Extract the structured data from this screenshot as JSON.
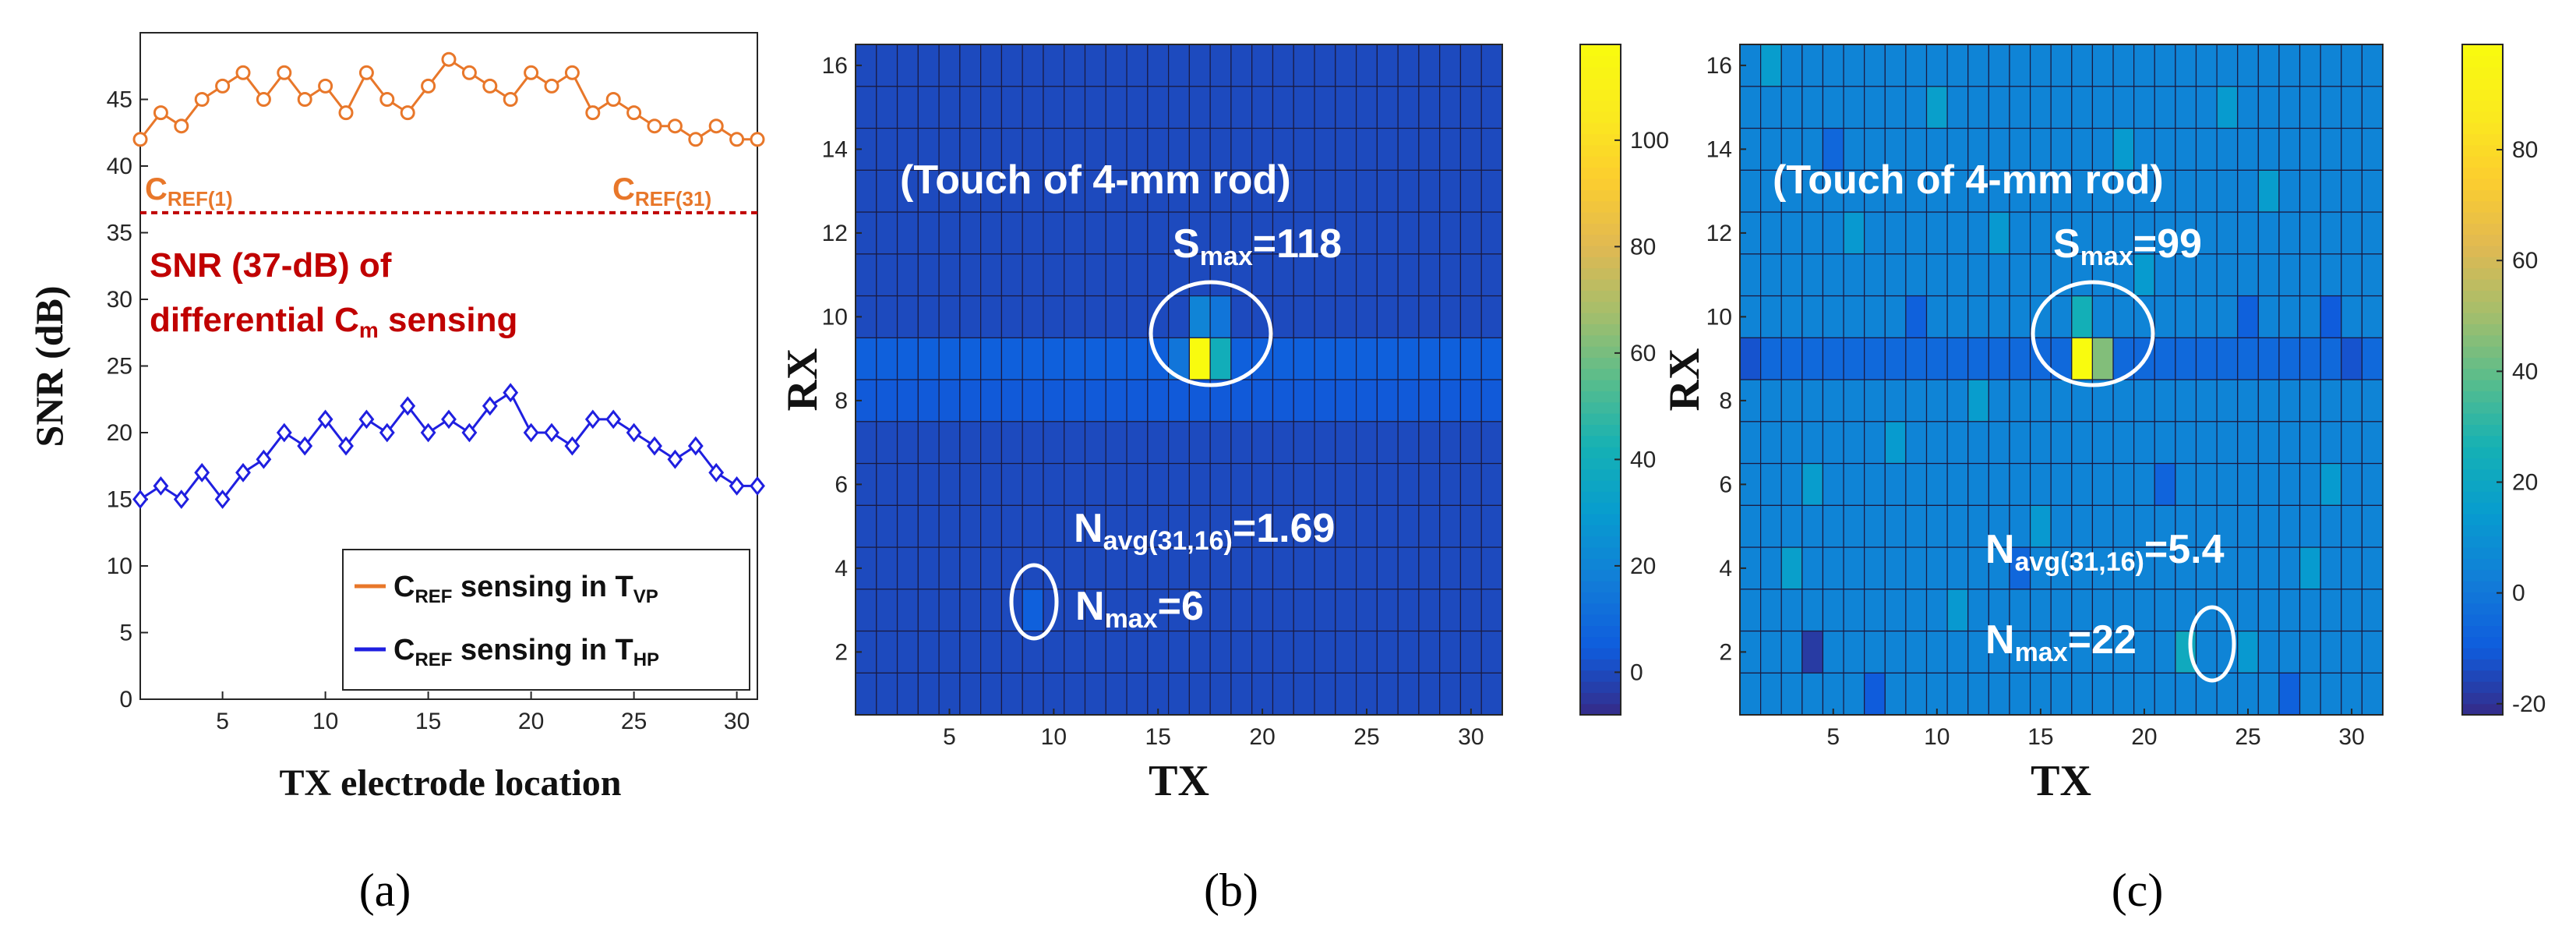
{
  "panel_labels": [
    "(a)",
    "(b)",
    "(c)"
  ],
  "colors": {
    "orange": "#e8772a",
    "blue": "#1f1fe0",
    "red_line": "#c00000",
    "annotation_white": "#ffffff"
  },
  "chart_data": [
    {
      "type": "line",
      "panel": "(a)",
      "xlabel": "TX electrode location",
      "ylabel": "SNR (dB)",
      "xlim": [
        1,
        31
      ],
      "ylim": [
        0,
        50
      ],
      "xticks": [
        5,
        10,
        15,
        20,
        25,
        30
      ],
      "yticks": [
        0,
        5,
        10,
        15,
        20,
        25,
        30,
        35,
        40,
        45
      ],
      "x": [
        1,
        2,
        3,
        4,
        5,
        6,
        7,
        8,
        9,
        10,
        11,
        12,
        13,
        14,
        15,
        16,
        17,
        18,
        19,
        20,
        21,
        22,
        23,
        24,
        25,
        26,
        27,
        28,
        29,
        30,
        31
      ],
      "series": [
        {
          "name_main": "C",
          "name_sub": "REF",
          "name_rest": " sensing in T",
          "name_sub2": "VP",
          "color": "#e8772a",
          "marker": "circle",
          "values": [
            42,
            44,
            43,
            45,
            46,
            47,
            45,
            47,
            45,
            46,
            44,
            47,
            45,
            44,
            46,
            48,
            47,
            46,
            45,
            47,
            46,
            47,
            44,
            45,
            44,
            43,
            43,
            42,
            43,
            42,
            42
          ]
        },
        {
          "name_main": "C",
          "name_sub": "REF",
          "name_rest": " sensing in T",
          "name_sub2": "HP",
          "color": "#1f1fe0",
          "marker": "diamond",
          "values": [
            15,
            16,
            15,
            17,
            15,
            17,
            18,
            20,
            19,
            21,
            19,
            21,
            20,
            22,
            20,
            21,
            20,
            22,
            23,
            20,
            20,
            19,
            21,
            21,
            20,
            19,
            18,
            19,
            17,
            16,
            16
          ]
        }
      ],
      "reference_line": {
        "value": 36.5,
        "label_line1": "SNR (37-dB) of",
        "label_line2_main": "differential C",
        "label_line2_sub": "m",
        "label_line2_rest": " sensing"
      },
      "annotations": [
        {
          "main": "C",
          "sub": "REF(1)"
        },
        {
          "main": "C",
          "sub": "REF(31)"
        }
      ],
      "legend_position": "bottom-right"
    },
    {
      "type": "heatmap",
      "panel": "(b)",
      "xlabel": "TX",
      "ylabel": "RX",
      "cols": 31,
      "rows": 16,
      "xticks": [
        5,
        10,
        15,
        20,
        25,
        30
      ],
      "yticks": [
        2,
        4,
        6,
        8,
        10,
        12,
        14,
        16
      ],
      "clim": [
        -8,
        118
      ],
      "colorbar_ticks": [
        0,
        20,
        40,
        60,
        80,
        100
      ],
      "base_value": 0,
      "row_values": {
        "8": 4,
        "9": 6
      },
      "cells": [
        {
          "tx": 17,
          "rx": 9,
          "v": 118
        },
        {
          "tx": 17,
          "rx": 10,
          "v": 20
        },
        {
          "tx": 18,
          "rx": 9,
          "v": 40
        },
        {
          "tx": 16,
          "rx": 9,
          "v": 14
        },
        {
          "tx": 18,
          "rx": 10,
          "v": 14
        },
        {
          "tx": 9,
          "rx": 3,
          "v": 6
        }
      ],
      "annotations": {
        "title": "(Touch of 4-mm rod)",
        "smax_main": "S",
        "smax_sub": "max",
        "smax_val": "=118",
        "navg_main": "N",
        "navg_sub": "avg(31,16)",
        "navg_val": "=1.69",
        "nmax_main": "N",
        "nmax_sub": "max",
        "nmax_val": "=6"
      }
    },
    {
      "type": "heatmap",
      "panel": "(c)",
      "xlabel": "TX",
      "ylabel": "RX",
      "cols": 31,
      "rows": 16,
      "xticks": [
        5,
        10,
        15,
        20,
        25,
        30
      ],
      "yticks": [
        2,
        4,
        6,
        8,
        10,
        12,
        14,
        16
      ],
      "clim": [
        -22,
        99
      ],
      "colorbar_ticks": [
        -20,
        0,
        20,
        40,
        60,
        80
      ],
      "base_value": 5,
      "row_values": {
        "9": -5
      },
      "cells": [
        {
          "tx": 17,
          "rx": 9,
          "v": 99
        },
        {
          "tx": 18,
          "rx": 9,
          "v": 45
        },
        {
          "tx": 17,
          "rx": 10,
          "v": 25
        },
        {
          "tx": 22,
          "rx": 2,
          "v": 22
        },
        {
          "tx": 3,
          "rx": 4,
          "v": 16
        },
        {
          "tx": 4,
          "rx": 6,
          "v": 15
        },
        {
          "tx": 8,
          "rx": 7,
          "v": 14
        },
        {
          "tx": 12,
          "rx": 8,
          "v": 15
        },
        {
          "tx": 20,
          "rx": 11,
          "v": 14
        },
        {
          "tx": 26,
          "rx": 13,
          "v": 15
        },
        {
          "tx": 10,
          "rx": 15,
          "v": 16
        },
        {
          "tx": 24,
          "rx": 15,
          "v": 14
        },
        {
          "tx": 15,
          "rx": 5,
          "v": 13
        },
        {
          "tx": 29,
          "rx": 6,
          "v": 14
        },
        {
          "tx": 6,
          "rx": 12,
          "v": 13
        },
        {
          "tx": 2,
          "rx": 16,
          "v": 15
        },
        {
          "tx": 25,
          "rx": 2,
          "v": 13
        },
        {
          "tx": 28,
          "rx": 4,
          "v": 14
        },
        {
          "tx": 11,
          "rx": 3,
          "v": 13
        },
        {
          "tx": 19,
          "rx": 14,
          "v": 14
        },
        {
          "tx": 13,
          "rx": 12,
          "v": 13
        },
        {
          "tx": 30,
          "rx": 9,
          "v": -12
        },
        {
          "tx": 29,
          "rx": 10,
          "v": -10
        },
        {
          "tx": 9,
          "rx": 10,
          "v": -8
        },
        {
          "tx": 4,
          "rx": 2,
          "v": -18
        },
        {
          "tx": 7,
          "rx": 1,
          "v": -10
        },
        {
          "tx": 25,
          "rx": 10,
          "v": -8
        },
        {
          "tx": 14,
          "rx": 4,
          "v": -6
        },
        {
          "tx": 21,
          "rx": 6,
          "v": -7
        },
        {
          "tx": 1,
          "rx": 9,
          "v": -12
        },
        {
          "tx": 27,
          "rx": 1,
          "v": -8
        },
        {
          "tx": 5,
          "rx": 14,
          "v": -6
        }
      ],
      "annotations": {
        "title": "(Touch of 4-mm rod)",
        "smax_main": "S",
        "smax_sub": "max",
        "smax_val": "=99",
        "navg_main": "N",
        "navg_sub": "avg(31,16)",
        "navg_val": "=5.4",
        "nmax_main": "N",
        "nmax_sub": "max",
        "nmax_val": "=22"
      }
    }
  ]
}
